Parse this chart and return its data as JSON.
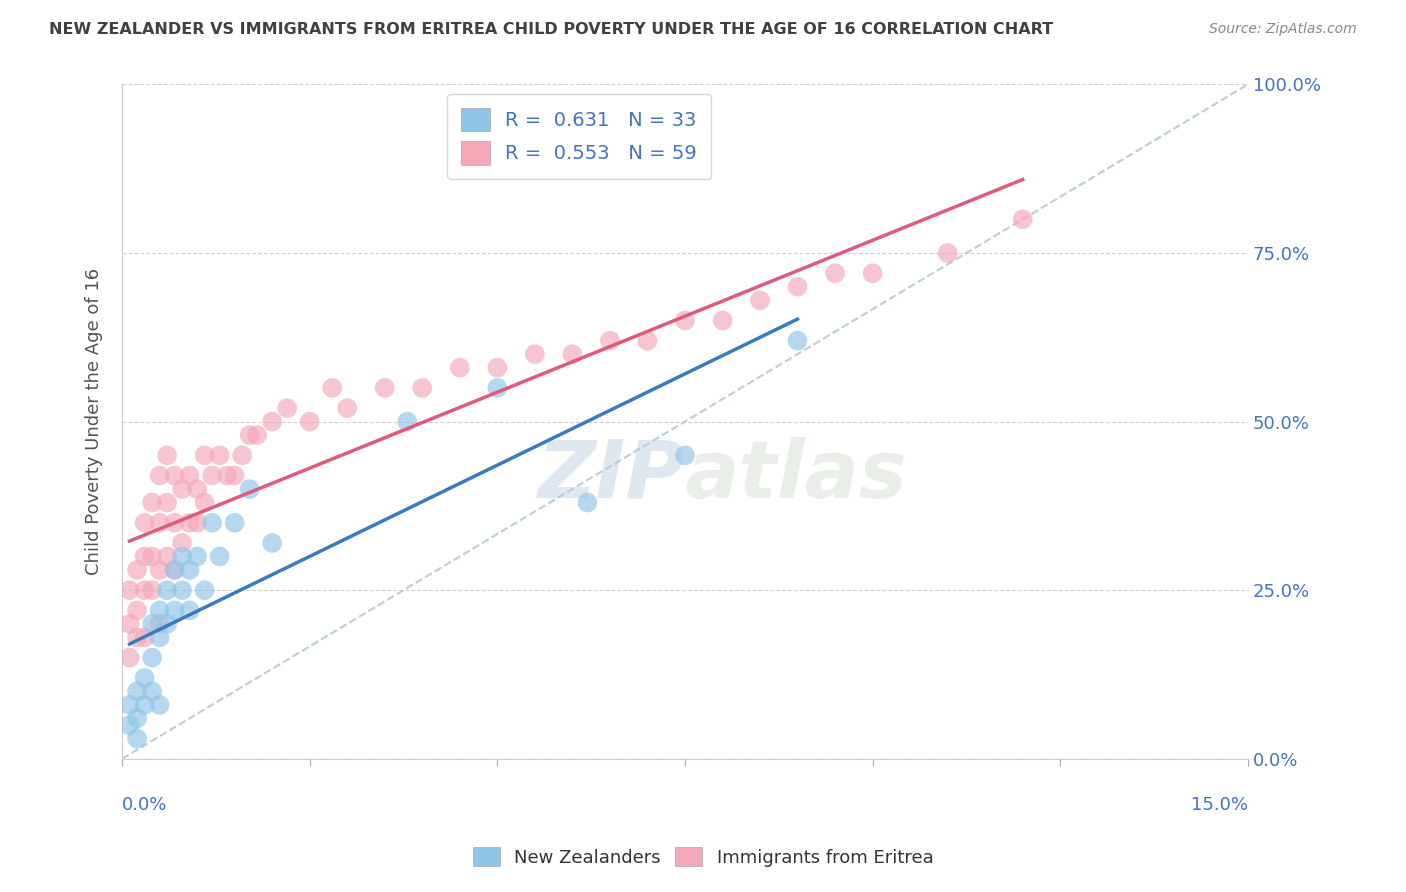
{
  "title": "NEW ZEALANDER VS IMMIGRANTS FROM ERITREA CHILD POVERTY UNDER THE AGE OF 16 CORRELATION CHART",
  "source": "Source: ZipAtlas.com",
  "ylabel": "Child Poverty Under the Age of 16",
  "legend_blue_label": "New Zealanders",
  "legend_pink_label": "Immigrants from Eritrea",
  "blue_color": "#8ec4e8",
  "pink_color": "#f4a7b9",
  "blue_line_color": "#3a7abf",
  "pink_line_color": "#e05a7a",
  "diag_color": "#b0c4d8",
  "watermark": "ZIPatlas",
  "bg_color": "#ffffff",
  "grid_color": "#d0d0d0",
  "title_color": "#404040",
  "axis_label_color": "#4472c4",
  "blue_scatter_x": [
    0.001,
    0.001,
    0.002,
    0.002,
    0.002,
    0.003,
    0.003,
    0.004,
    0.004,
    0.004,
    0.005,
    0.005,
    0.005,
    0.006,
    0.006,
    0.007,
    0.007,
    0.008,
    0.008,
    0.009,
    0.009,
    0.01,
    0.011,
    0.012,
    0.013,
    0.015,
    0.017,
    0.02,
    0.038,
    0.05,
    0.062,
    0.075,
    0.09
  ],
  "blue_scatter_y": [
    0.05,
    0.08,
    0.06,
    0.1,
    0.03,
    0.12,
    0.08,
    0.15,
    0.1,
    0.2,
    0.18,
    0.22,
    0.08,
    0.2,
    0.25,
    0.22,
    0.28,
    0.25,
    0.3,
    0.28,
    0.22,
    0.3,
    0.25,
    0.35,
    0.3,
    0.35,
    0.4,
    0.32,
    0.5,
    0.55,
    0.38,
    0.45,
    0.62
  ],
  "pink_scatter_x": [
    0.001,
    0.001,
    0.001,
    0.002,
    0.002,
    0.002,
    0.003,
    0.003,
    0.003,
    0.003,
    0.004,
    0.004,
    0.004,
    0.005,
    0.005,
    0.005,
    0.005,
    0.006,
    0.006,
    0.006,
    0.007,
    0.007,
    0.007,
    0.008,
    0.008,
    0.009,
    0.009,
    0.01,
    0.01,
    0.011,
    0.011,
    0.012,
    0.013,
    0.014,
    0.015,
    0.016,
    0.017,
    0.018,
    0.02,
    0.022,
    0.025,
    0.028,
    0.03,
    0.035,
    0.04,
    0.045,
    0.05,
    0.055,
    0.06,
    0.065,
    0.07,
    0.075,
    0.08,
    0.085,
    0.09,
    0.095,
    0.1,
    0.11,
    0.12
  ],
  "pink_scatter_y": [
    0.15,
    0.2,
    0.25,
    0.18,
    0.22,
    0.28,
    0.18,
    0.25,
    0.3,
    0.35,
    0.25,
    0.3,
    0.38,
    0.28,
    0.35,
    0.42,
    0.2,
    0.3,
    0.38,
    0.45,
    0.28,
    0.35,
    0.42,
    0.32,
    0.4,
    0.35,
    0.42,
    0.35,
    0.4,
    0.38,
    0.45,
    0.42,
    0.45,
    0.42,
    0.42,
    0.45,
    0.48,
    0.48,
    0.5,
    0.52,
    0.5,
    0.55,
    0.52,
    0.55,
    0.55,
    0.58,
    0.58,
    0.6,
    0.6,
    0.62,
    0.62,
    0.65,
    0.65,
    0.68,
    0.7,
    0.72,
    0.72,
    0.75,
    0.8
  ],
  "xlim": [
    0.0,
    0.15
  ],
  "ylim": [
    0.0,
    1.0
  ],
  "ytick_positions": [
    0.0,
    0.25,
    0.5,
    0.75,
    1.0
  ],
  "ytick_labels": [
    "0.0%",
    "25.0%",
    "50.0%",
    "75.0%",
    "100.0%"
  ],
  "xtick_positions": [
    0.0,
    0.025,
    0.05,
    0.075,
    0.1,
    0.125,
    0.15
  ]
}
